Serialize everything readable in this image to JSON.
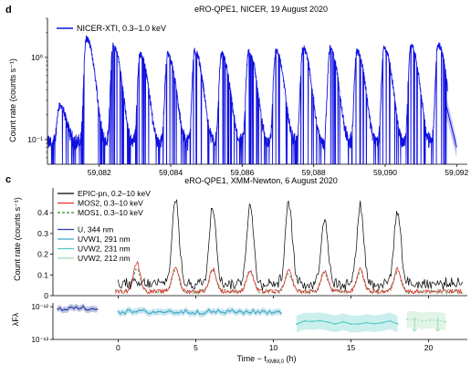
{
  "figure": {
    "panel_d_letter": "d",
    "panel_c_letter": "c"
  },
  "chart_data": [
    {
      "id": "panel-d",
      "type": "line",
      "title": "eRO-QPE1, NICER, 19 August 2020",
      "xlabel": "",
      "ylabel": "Count rate (counts s⁻¹)",
      "yscale": "log",
      "xlim": [
        59080.55,
        59092.3
      ],
      "ylim": [
        0.05,
        3.0
      ],
      "x_ticks": [
        59082,
        59084,
        59086,
        59088,
        59090,
        59092
      ],
      "x_tick_labels": [
        "59,082",
        "59,084",
        "59,086",
        "59,088",
        "59,090",
        "59,092"
      ],
      "y_ticks": [
        0.1,
        1
      ],
      "y_tick_labels": [
        "10⁻¹",
        "10⁰"
      ],
      "legend": {
        "placement": "top-left"
      },
      "series": [
        {
          "name": "NICER-XTI, 0.3–1.0 keV",
          "color": "#1010e0",
          "baseline": 0.09,
          "flare_peaks_x": [
            59080.88,
            59081.64,
            59082.39,
            59083.14,
            59083.91,
            59084.67,
            59085.42,
            59086.18,
            59086.94,
            59087.7,
            59088.46,
            59089.21,
            59089.97,
            59090.72,
            59091.48
          ],
          "flare_peak_y": [
            0.17,
            1.6,
            1.3,
            1.0,
            1.0,
            1.1,
            1.0,
            1.1,
            1.1,
            1.2,
            1.2,
            1.1,
            1.2,
            1.3,
            1.35
          ]
        }
      ],
      "annotations": []
    },
    {
      "id": "panel-c",
      "type": "line",
      "title": "eRO-QPE1, XMM-Newton, 6 August 2020",
      "xlabel": "Time − t",
      "xlabel_sub": "XMM,0",
      "xlabel_unit": " (h)",
      "ylabel": "Count rate (counts s⁻¹)",
      "xlim": [
        -4.2,
        22.5
      ],
      "ylim": [
        0,
        0.52
      ],
      "x_ticks": [
        0,
        5,
        10,
        15,
        20
      ],
      "x_tick_labels": [
        "0",
        "5",
        "10",
        "15",
        "20"
      ],
      "y_ticks": [
        0,
        0.1,
        0.2,
        0.3,
        0.4
      ],
      "y_tick_labels": [
        "0",
        "0.1",
        "0.2",
        "0.3",
        "0.4"
      ],
      "legend": {
        "placement": "top-left"
      },
      "series": [
        {
          "name": "EPIC-pn, 0.2–10 keV",
          "color": "#000000",
          "style": "solid",
          "peaks_x": [
            3.7,
            6.1,
            8.5,
            11.0,
            13.3,
            15.6,
            18.0
          ],
          "peaks_y": [
            0.46,
            0.43,
            0.43,
            0.44,
            0.37,
            0.43,
            0.4
          ],
          "base_y": 0.05
        },
        {
          "name": "MOS2, 0.3–10 keV",
          "color": "#e03030",
          "style": "solid",
          "peaks_x": [
            1.2,
            3.7,
            6.1,
            8.5,
            11.0,
            13.3,
            15.6,
            18.0
          ],
          "peaks_y": [
            0.16,
            0.14,
            0.13,
            0.12,
            0.12,
            0.12,
            0.13,
            0.13
          ],
          "base_y": 0.02
        },
        {
          "name": "MOS1, 0.3–10 keV",
          "color": "#2f8a2f",
          "style": "dashed",
          "peaks_x": [
            1.2,
            3.7,
            6.1,
            8.5,
            11.0,
            13.3,
            15.6,
            18.0
          ],
          "peaks_y": [
            0.13,
            0.13,
            0.12,
            0.12,
            0.11,
            0.11,
            0.12,
            0.12
          ],
          "base_y": 0.02
        }
      ],
      "annotations": []
    },
    {
      "id": "panel-c-uv",
      "type": "line",
      "ylabel": "λFλ",
      "yscale": "log",
      "xlim": [
        -4.2,
        22.5
      ],
      "ylim": [
        1e-13,
        1.3e-12
      ],
      "y_ticks": [
        1e-12,
        1e-13
      ],
      "y_tick_labels": [
        "10⁻¹²",
        "10⁻¹³"
      ],
      "series": [
        {
          "name": "U, 344 nm",
          "color": "#2a3fa0",
          "x_range": [
            -3.9,
            -1.3
          ],
          "level": 9e-13
        },
        {
          "name": "UVW1, 291 nm",
          "color": "#3fa8c8",
          "x_range": [
            0.0,
            10.5
          ],
          "level": 7e-13
        },
        {
          "name": "UVW2, 231 nm",
          "color": "#4ec9c0",
          "x_range": [
            11.5,
            18.0
          ],
          "level": 3.3e-13
        },
        {
          "name": "UVW2, 212 nm",
          "color": "#9adcb0",
          "x_range": [
            18.6,
            21.5
          ],
          "level": 4e-13,
          "upper_limits": true
        }
      ]
    }
  ]
}
